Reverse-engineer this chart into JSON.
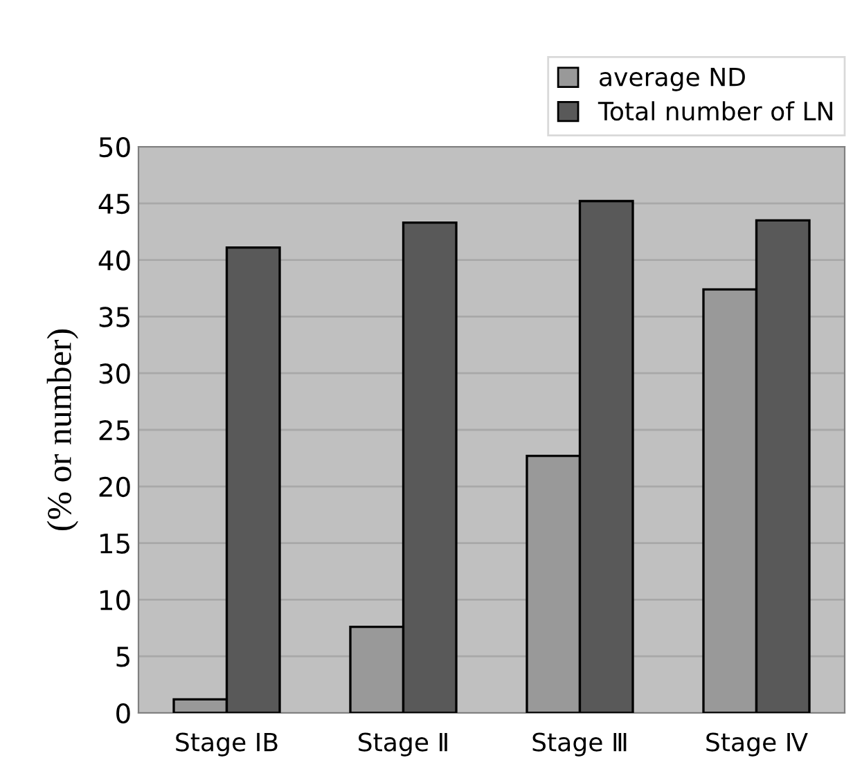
{
  "chart_data": {
    "type": "bar",
    "ylabel": "(% or number)",
    "categories": [
      "Stage ⅠB",
      "Stage Ⅱ",
      "Stage Ⅲ",
      "Stage Ⅳ"
    ],
    "series": [
      {
        "name": "average ND",
        "color": "#999999",
        "values": [
          1.2,
          7.6,
          22.7,
          37.4
        ]
      },
      {
        "name": "Total number of LN",
        "color": "#595959",
        "values": [
          41.1,
          43.3,
          45.2,
          43.5
        ]
      }
    ],
    "ylim": [
      0,
      50
    ],
    "yticks": [
      0,
      5,
      10,
      15,
      20,
      25,
      30,
      35,
      40,
      45,
      50
    ],
    "grid": "y",
    "legend": "top right"
  }
}
